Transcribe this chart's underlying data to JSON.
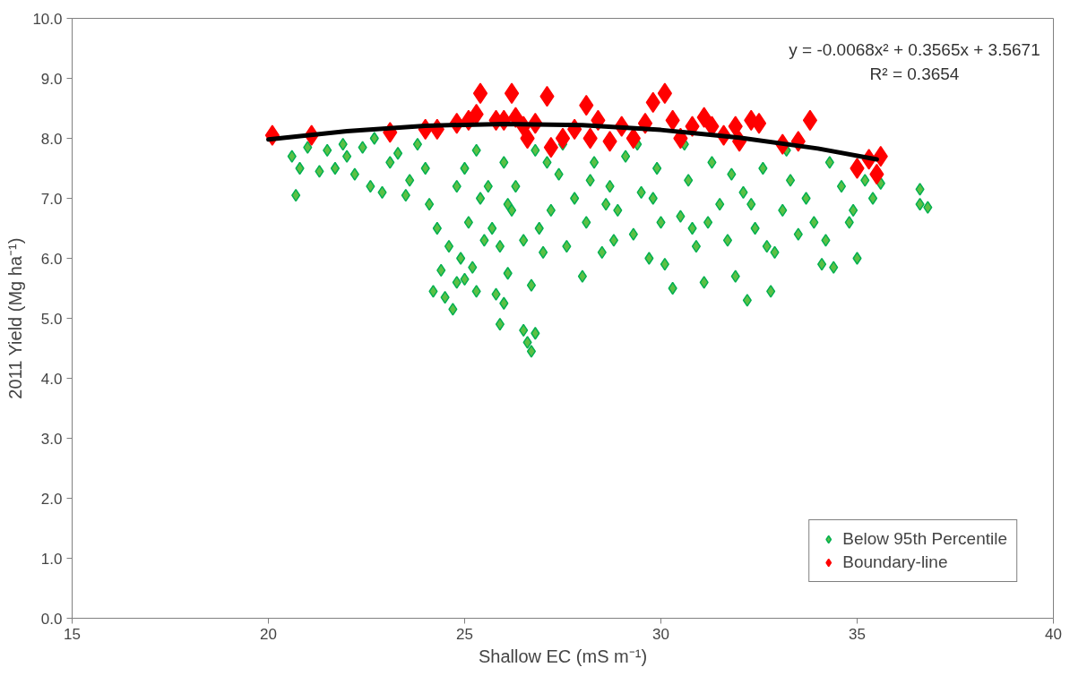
{
  "chart_data": {
    "type": "scatter",
    "xlabel": "Shallow EC (mS m⁻¹)",
    "ylabel": "2011 Yield (Mg ha⁻¹)",
    "xlim": [
      15,
      40
    ],
    "xticks": [
      15,
      20,
      25,
      30,
      35,
      40
    ],
    "ylim": [
      0,
      10
    ],
    "yticks": [
      {
        "value": 0,
        "label": "0.0"
      },
      {
        "value": 1,
        "label": "1.0"
      },
      {
        "value": 2,
        "label": "2.0"
      },
      {
        "value": 3,
        "label": "3.0"
      },
      {
        "value": 4,
        "label": "4.0"
      },
      {
        "value": 5,
        "label": "5.0"
      },
      {
        "value": 6,
        "label": "6.0"
      },
      {
        "value": 7,
        "label": "7.0"
      },
      {
        "value": 8,
        "label": "8.0"
      },
      {
        "value": 9,
        "label": "9.0"
      },
      {
        "value": 10,
        "label": "10.0"
      }
    ],
    "grid": false,
    "legend": "bottom right",
    "marker": "diamond",
    "annotations": [
      "y = -0.0068x² + 0.3565x + 3.5671",
      "R² = 0.3654"
    ],
    "series": [
      {
        "name": "Below 95th Percentile",
        "color": "#5cc045",
        "x": [
          20.6,
          20.8,
          20.7,
          21.0,
          21.3,
          21.5,
          21.7,
          21.9,
          22.0,
          22.2,
          22.4,
          22.6,
          22.7,
          22.9,
          23.1,
          23.3,
          23.5,
          23.6,
          23.8,
          24.0,
          24.1,
          24.2,
          24.3,
          24.4,
          24.5,
          24.6,
          24.7,
          24.8,
          24.9,
          25.0,
          25.1,
          25.2,
          25.3,
          25.5,
          25.6,
          25.8,
          25.9,
          26.0,
          26.1,
          26.2,
          26.5,
          26.6,
          26.7,
          26.8,
          26.7,
          27.0,
          25.0,
          25.4,
          25.7,
          26.0,
          26.3,
          26.5,
          26.8,
          27.2,
          27.4,
          27.6,
          27.8,
          28.0,
          28.1,
          28.3,
          28.5,
          28.7,
          28.9,
          29.1,
          29.3,
          29.5,
          29.7,
          29.9,
          30.1,
          30.3,
          30.5,
          30.7,
          30.9,
          31.1,
          31.3,
          31.5,
          31.7,
          31.9,
          32.1,
          32.2,
          32.4,
          32.6,
          32.8,
          32.9,
          33.1,
          33.3,
          33.5,
          33.7,
          33.9,
          34.1,
          34.2,
          34.3,
          34.4,
          34.6,
          34.8,
          34.9,
          35.0,
          35.2,
          35.4,
          35.6,
          36.6,
          36.6,
          36.8,
          25.3,
          26.1,
          26.9,
          27.5,
          28.2,
          28.8,
          29.4,
          30.0,
          30.6,
          31.2,
          31.8,
          32.3,
          33.2,
          27.1,
          29.8,
          30.8,
          32.7,
          24.8,
          25.9,
          28.6
        ],
        "values": [
          7.7,
          7.5,
          7.05,
          7.85,
          7.45,
          7.8,
          7.5,
          7.9,
          7.7,
          7.4,
          7.85,
          7.2,
          8.0,
          7.1,
          7.6,
          7.75,
          7.05,
          7.3,
          7.9,
          7.5,
          6.9,
          5.45,
          6.5,
          5.8,
          5.35,
          6.2,
          5.15,
          5.6,
          6.0,
          5.65,
          6.6,
          5.85,
          5.45,
          6.3,
          7.2,
          5.4,
          4.9,
          5.25,
          5.75,
          6.8,
          4.8,
          4.6,
          4.45,
          4.75,
          5.55,
          6.1,
          7.5,
          7.0,
          6.5,
          7.6,
          7.2,
          6.3,
          7.8,
          6.8,
          7.4,
          6.2,
          7.0,
          5.7,
          6.6,
          7.6,
          6.1,
          7.2,
          6.8,
          7.7,
          6.4,
          7.1,
          6.0,
          7.5,
          5.9,
          5.5,
          6.7,
          7.3,
          6.2,
          5.6,
          7.6,
          6.9,
          6.3,
          5.7,
          7.1,
          5.3,
          6.5,
          7.5,
          5.45,
          6.1,
          6.8,
          7.3,
          6.4,
          7.0,
          6.6,
          5.9,
          6.3,
          7.6,
          5.85,
          7.2,
          6.6,
          6.8,
          6.0,
          7.3,
          7.0,
          7.25,
          7.15,
          6.9,
          6.85,
          7.8,
          6.9,
          6.5,
          7.9,
          7.3,
          6.3,
          7.9,
          6.6,
          7.9,
          6.6,
          7.4,
          6.9,
          7.8,
          7.6,
          7.0,
          6.5,
          6.2,
          7.2,
          6.2,
          6.9
        ]
      },
      {
        "name": "Boundary-line",
        "color": "#ff0000",
        "x": [
          20.1,
          21.1,
          23.1,
          24.0,
          24.3,
          24.8,
          25.1,
          25.3,
          25.4,
          25.8,
          26.0,
          26.2,
          26.3,
          26.6,
          26.8,
          27.1,
          27.2,
          27.5,
          27.8,
          28.1,
          28.2,
          28.4,
          28.7,
          29.0,
          29.3,
          29.6,
          29.8,
          30.1,
          30.3,
          30.5,
          30.8,
          31.1,
          31.3,
          31.6,
          32.0,
          32.3,
          32.5,
          33.1,
          33.5,
          33.8,
          35.0,
          35.3,
          35.5,
          35.6,
          26.5,
          31.9
        ],
        "values": [
          8.05,
          8.05,
          8.1,
          8.15,
          8.15,
          8.25,
          8.3,
          8.4,
          8.75,
          8.3,
          8.3,
          8.75,
          8.35,
          8.0,
          8.25,
          8.7,
          7.85,
          8.0,
          8.15,
          8.55,
          8.0,
          8.3,
          7.95,
          8.2,
          8.0,
          8.25,
          8.6,
          8.75,
          8.3,
          8.0,
          8.2,
          8.35,
          8.2,
          8.05,
          7.95,
          8.3,
          8.25,
          7.9,
          7.95,
          8.3,
          7.5,
          7.65,
          7.4,
          7.7,
          8.2,
          8.2
        ]
      },
      {
        "type": "line",
        "color": "#000000",
        "marker": "none",
        "x": [
          20,
          22,
          24,
          26,
          28,
          30,
          32,
          34,
          35.5
        ],
        "values": [
          7.98,
          8.12,
          8.21,
          8.24,
          8.22,
          8.14,
          8.01,
          7.83,
          7.65
        ]
      }
    ]
  }
}
